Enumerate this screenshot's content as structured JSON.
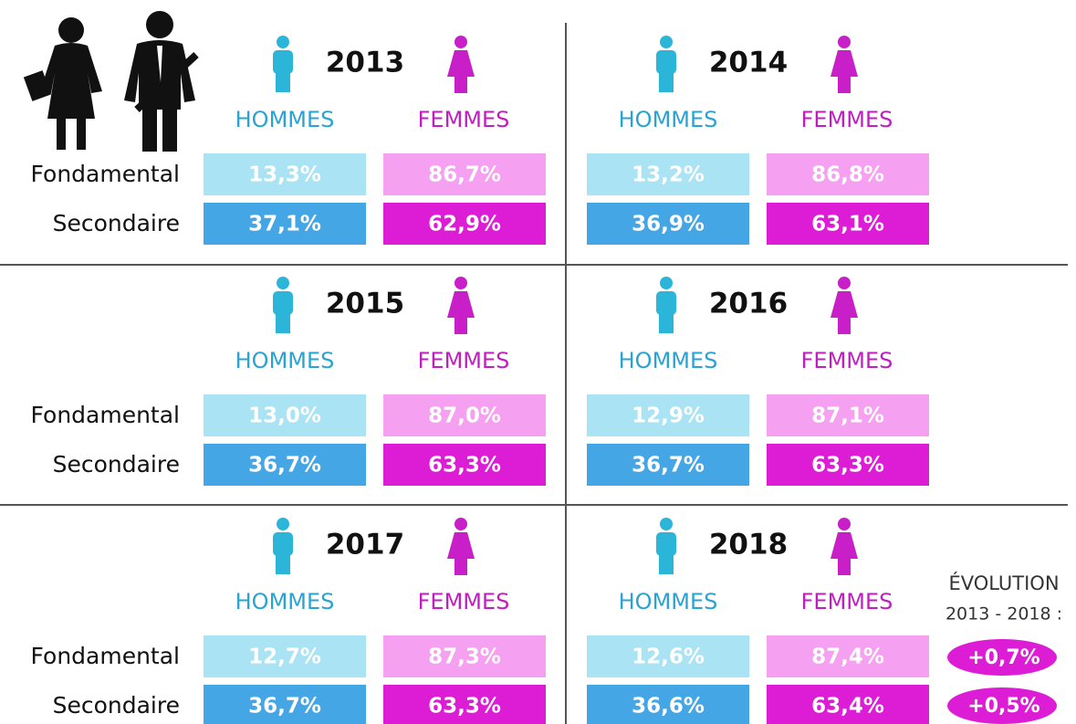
{
  "panels": [
    {
      "year": "2013",
      "men": "HOMMES",
      "women": "FEMMES",
      "rows": [
        {
          "label": "Fondamental",
          "men": "13,3%",
          "women": "86,7%"
        },
        {
          "label": "Secondaire",
          "men": "37,1%",
          "women": "62,9%"
        }
      ]
    },
    {
      "year": "2014",
      "men": "HOMMES",
      "women": "FEMMES",
      "rows": [
        {
          "men": "13,2%",
          "women": "86,8%"
        },
        {
          "men": "36,9%",
          "women": "63,1%"
        }
      ]
    },
    {
      "year": "2015",
      "men": "HOMMES",
      "women": "FEMMES",
      "rows": [
        {
          "label": "Fondamental",
          "men": "13,0%",
          "women": "87,0%"
        },
        {
          "label": "Secondaire",
          "men": "36,7%",
          "women": "63,3%"
        }
      ]
    },
    {
      "year": "2016",
      "men": "HOMMES",
      "women": "FEMMES",
      "rows": [
        {
          "men": "12,9%",
          "women": "87,1%"
        },
        {
          "men": "36,7%",
          "women": "63,3%"
        }
      ]
    },
    {
      "year": "2017",
      "men": "HOMMES",
      "women": "FEMMES",
      "rows": [
        {
          "label": "Fondamental",
          "men": "12,7%",
          "women": "87,3%"
        },
        {
          "label": "Secondaire",
          "men": "36,7%",
          "women": "63,3%"
        }
      ]
    },
    {
      "year": "2018",
      "men": "HOMMES",
      "women": "FEMMES",
      "rows": [
        {
          "men": "12,6%",
          "women": "87,4%"
        },
        {
          "men": "36,6%",
          "women": "63,4%"
        }
      ]
    }
  ],
  "evolution": {
    "title": "ÉVOLUTION",
    "period": "2013 - 2018 :",
    "values": [
      "+0,7%",
      "+0,5%"
    ]
  }
}
